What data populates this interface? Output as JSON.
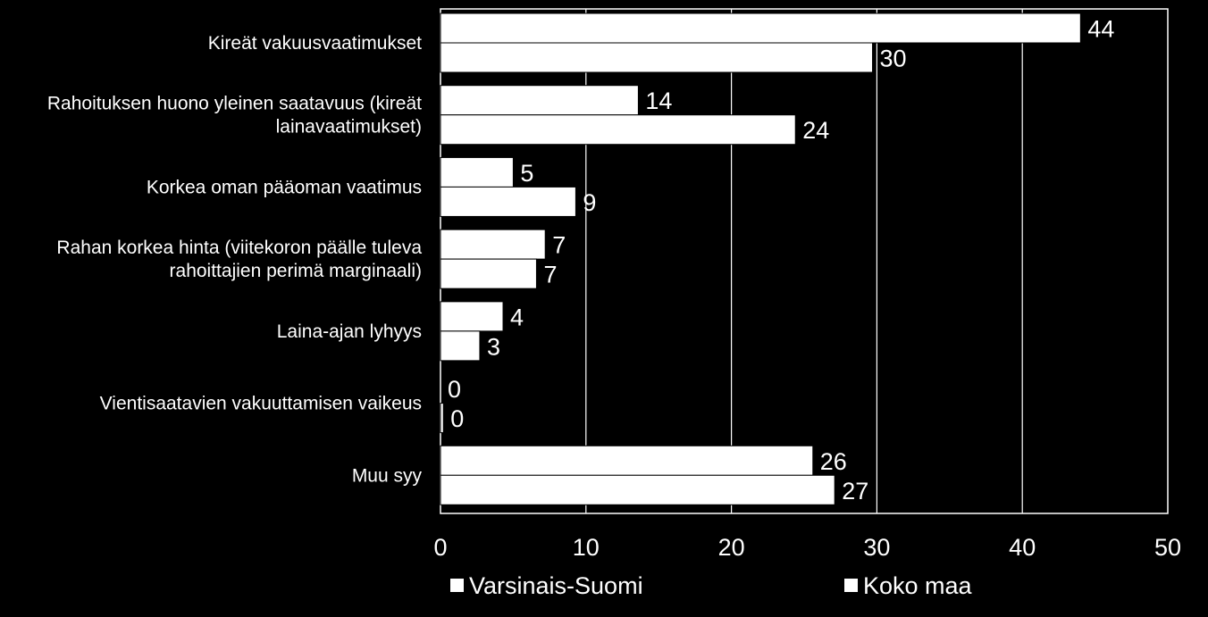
{
  "chart_data": {
    "type": "bar",
    "orientation": "horizontal",
    "categories": [
      [
        "Kireät vakuusvaatimukset"
      ],
      [
        "Rahoituksen huono yleinen saatavuus (kireät",
        "lainavaatimukset)"
      ],
      [
        "Korkea oman pääoman vaatimus"
      ],
      [
        "Rahan korkea hinta (viitekoron päälle tuleva",
        "rahoittajien perimä marginaali)"
      ],
      [
        "Laina-ajan lyhyys"
      ],
      [
        "Vientisaatavien vakuuttamisen vaikeus"
      ],
      [
        "Muu syy"
      ]
    ],
    "series": [
      {
        "name": "Varsinais-Suomi",
        "values": [
          44,
          13.6,
          5,
          7.2,
          4.3,
          0,
          25.6
        ],
        "labels": [
          "44",
          "14",
          "5",
          "7",
          "4",
          "0",
          "26"
        ]
      },
      {
        "name": "Koko maa",
        "values": [
          29.7,
          24.4,
          9.3,
          6.6,
          2.7,
          0.2,
          27.1
        ],
        "labels": [
          "30",
          "24",
          "9",
          "7",
          "3",
          "0",
          "27"
        ]
      }
    ],
    "xlim": [
      0,
      50
    ],
    "xticks": [
      "0",
      "10",
      "20",
      "30",
      "40",
      "50"
    ],
    "grid": true,
    "legend_position": "bottom",
    "colors": {
      "background": "#000000",
      "bar": "#ffffff",
      "border": "#ffffff",
      "text": "#ffffff"
    }
  }
}
